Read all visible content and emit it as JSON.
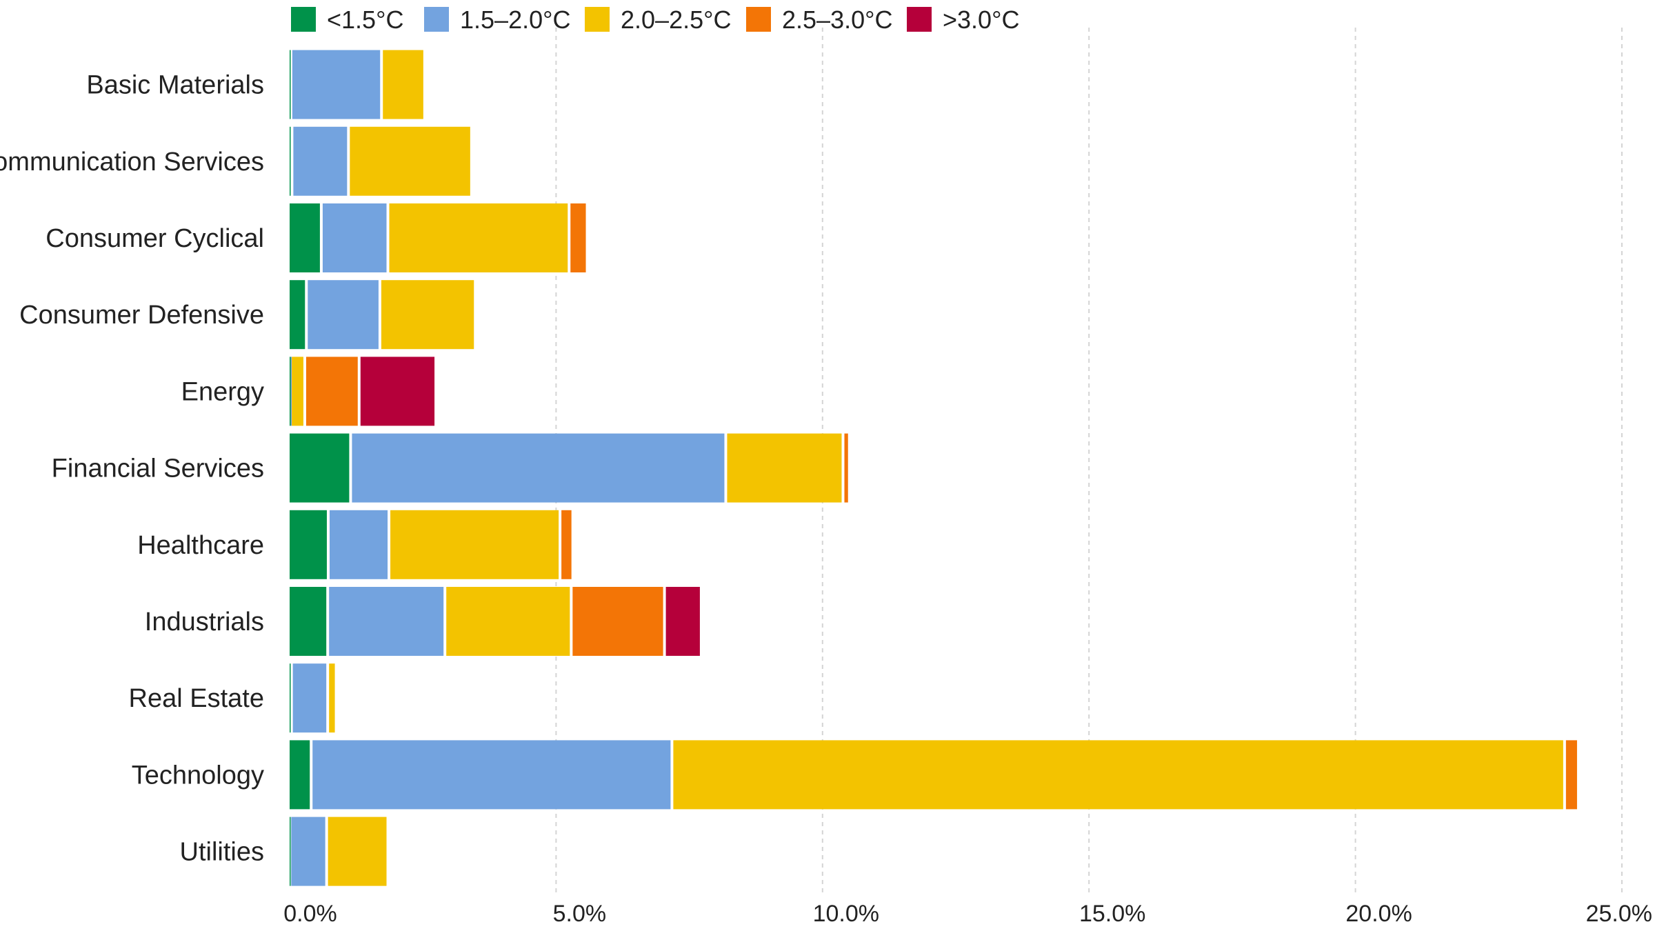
{
  "chart_data": {
    "type": "bar",
    "orientation": "horizontal",
    "stacked": true,
    "categories": [
      "Basic Materials",
      "Communication Services",
      "Consumer Cyclical",
      "Consumer Defensive",
      "Energy",
      "Financial Services",
      "Healthcare",
      "Industrials",
      "Real Estate",
      "Technology",
      "Utilities"
    ],
    "series": [
      {
        "name": "<1.5°C",
        "color": "#00924A",
        "values": [
          0.05,
          0.07,
          0.62,
          0.34,
          0.02,
          1.17,
          0.75,
          0.74,
          0.06,
          0.43,
          0.03
        ]
      },
      {
        "name": "1.5–2.0°C",
        "color": "#73A3DF",
        "values": [
          1.7,
          1.06,
          1.25,
          1.38,
          0.02,
          7.04,
          1.14,
          2.2,
          0.68,
          6.77,
          0.69
        ]
      },
      {
        "name": "2.0–2.5°C",
        "color": "#F3C300",
        "values": [
          0.81,
          2.31,
          3.4,
          1.79,
          0.27,
          2.2,
          3.21,
          2.37,
          0.16,
          16.75,
          1.15
        ]
      },
      {
        "name": "2.5–3.0°C",
        "color": "#F37506",
        "values": [
          0.0,
          0.0,
          0.34,
          0.0,
          1.02,
          0.12,
          0.24,
          1.75,
          0.0,
          0.26,
          0.0
        ]
      },
      {
        "name": ">3.0°C",
        "color": "#B5003A",
        "values": [
          0.0,
          0.0,
          0.0,
          0.0,
          1.44,
          0.0,
          0.0,
          0.69,
          0.0,
          0.0,
          0.0
        ]
      }
    ],
    "xlim": [
      0,
      25
    ],
    "xticks": [
      0,
      5,
      10,
      15,
      20,
      25
    ],
    "xtick_labels": [
      "0.0%",
      "5.0%",
      "10.0%",
      "15.0%",
      "20.0%",
      "25.0%"
    ],
    "grid": true,
    "legend_position": "top"
  }
}
